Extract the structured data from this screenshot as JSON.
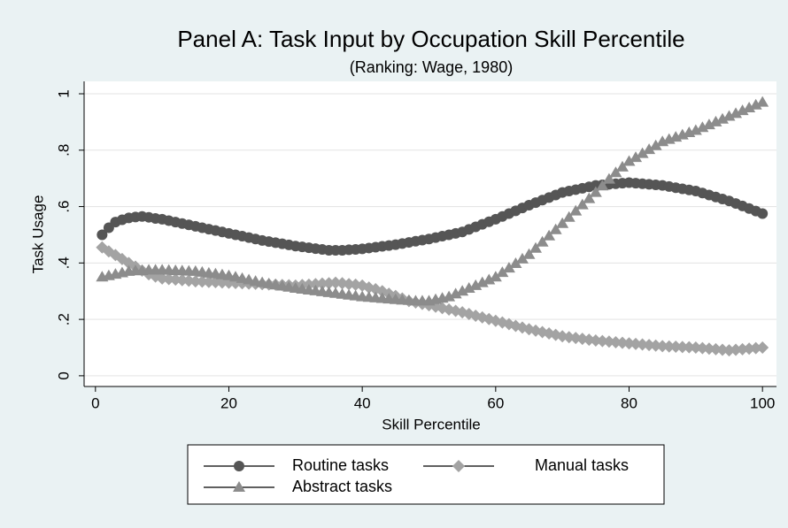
{
  "chart_data": {
    "type": "line",
    "title": "Panel A: Task Input by Occupation Skill Percentile",
    "subtitle": "(Ranking: Wage, 1980)",
    "x_label": "Skill Percentile",
    "y_label": "Task Usage",
    "x": [
      1,
      2,
      3,
      4,
      5,
      6,
      7,
      8,
      9,
      10,
      11,
      12,
      13,
      14,
      15,
      16,
      17,
      18,
      19,
      20,
      21,
      22,
      23,
      24,
      25,
      26,
      27,
      28,
      29,
      30,
      31,
      32,
      33,
      34,
      35,
      36,
      37,
      38,
      39,
      40,
      41,
      42,
      43,
      44,
      45,
      46,
      47,
      48,
      49,
      50,
      51,
      52,
      53,
      54,
      55,
      56,
      57,
      58,
      59,
      60,
      61,
      62,
      63,
      64,
      65,
      66,
      67,
      68,
      69,
      70,
      71,
      72,
      73,
      74,
      75,
      76,
      77,
      78,
      79,
      80,
      81,
      82,
      83,
      84,
      85,
      86,
      87,
      88,
      89,
      90,
      91,
      92,
      93,
      94,
      95,
      96,
      97,
      98,
      99,
      100
    ],
    "series": [
      {
        "name": "Routine tasks",
        "color": "#555555",
        "marker": "circle",
        "values": [
          0.5,
          0.525,
          0.545,
          0.553,
          0.56,
          0.563,
          0.565,
          0.562,
          0.558,
          0.555,
          0.55,
          0.545,
          0.54,
          0.535,
          0.53,
          0.525,
          0.52,
          0.515,
          0.51,
          0.505,
          0.5,
          0.495,
          0.49,
          0.485,
          0.48,
          0.476,
          0.472,
          0.468,
          0.464,
          0.46,
          0.457,
          0.454,
          0.451,
          0.448,
          0.445,
          0.445,
          0.445,
          0.447,
          0.448,
          0.45,
          0.453,
          0.456,
          0.459,
          0.462,
          0.465,
          0.469,
          0.473,
          0.477,
          0.481,
          0.485,
          0.49,
          0.495,
          0.5,
          0.505,
          0.51,
          0.519,
          0.528,
          0.537,
          0.546,
          0.555,
          0.565,
          0.575,
          0.585,
          0.595,
          0.605,
          0.614,
          0.623,
          0.632,
          0.641,
          0.65,
          0.655,
          0.66,
          0.665,
          0.67,
          0.675,
          0.677,
          0.679,
          0.681,
          0.683,
          0.685,
          0.683,
          0.681,
          0.679,
          0.677,
          0.675,
          0.671,
          0.667,
          0.663,
          0.659,
          0.655,
          0.648,
          0.641,
          0.634,
          0.627,
          0.62,
          0.611,
          0.602,
          0.593,
          0.584,
          0.575
        ]
      },
      {
        "name": "Manual tasks",
        "color": "#a3a3a3",
        "marker": "diamond",
        "values": [
          0.455,
          0.441,
          0.428,
          0.414,
          0.4,
          0.387,
          0.373,
          0.36,
          0.352,
          0.345,
          0.343,
          0.341,
          0.339,
          0.337,
          0.335,
          0.334,
          0.333,
          0.332,
          0.331,
          0.33,
          0.329,
          0.328,
          0.327,
          0.326,
          0.325,
          0.324,
          0.323,
          0.322,
          0.321,
          0.32,
          0.322,
          0.323,
          0.325,
          0.327,
          0.328,
          0.33,
          0.328,
          0.325,
          0.323,
          0.32,
          0.313,
          0.307,
          0.3,
          0.291,
          0.283,
          0.274,
          0.265,
          0.26,
          0.255,
          0.25,
          0.245,
          0.24,
          0.235,
          0.23,
          0.225,
          0.219,
          0.213,
          0.207,
          0.201,
          0.195,
          0.189,
          0.183,
          0.177,
          0.171,
          0.165,
          0.16,
          0.155,
          0.15,
          0.145,
          0.14,
          0.137,
          0.134,
          0.131,
          0.128,
          0.125,
          0.123,
          0.121,
          0.119,
          0.117,
          0.115,
          0.113,
          0.111,
          0.109,
          0.107,
          0.105,
          0.104,
          0.103,
          0.102,
          0.101,
          0.1,
          0.098,
          0.096,
          0.094,
          0.092,
          0.09,
          0.092,
          0.094,
          0.096,
          0.098,
          0.1
        ]
      },
      {
        "name": "Abstract tasks",
        "color": "#8c8c8c",
        "marker": "triangle",
        "values": [
          0.35,
          0.355,
          0.36,
          0.365,
          0.37,
          0.372,
          0.373,
          0.375,
          0.375,
          0.375,
          0.374,
          0.373,
          0.372,
          0.371,
          0.37,
          0.367,
          0.364,
          0.361,
          0.358,
          0.355,
          0.35,
          0.345,
          0.34,
          0.335,
          0.33,
          0.326,
          0.322,
          0.318,
          0.314,
          0.31,
          0.307,
          0.304,
          0.301,
          0.298,
          0.295,
          0.292,
          0.289,
          0.286,
          0.283,
          0.28,
          0.278,
          0.276,
          0.274,
          0.272,
          0.27,
          0.268,
          0.267,
          0.265,
          0.265,
          0.265,
          0.27,
          0.275,
          0.28,
          0.29,
          0.3,
          0.31,
          0.32,
          0.33,
          0.34,
          0.35,
          0.366,
          0.382,
          0.398,
          0.414,
          0.43,
          0.452,
          0.474,
          0.496,
          0.518,
          0.54,
          0.562,
          0.584,
          0.606,
          0.628,
          0.65,
          0.673,
          0.697,
          0.72,
          0.74,
          0.76,
          0.774,
          0.788,
          0.802,
          0.816,
          0.83,
          0.838,
          0.846,
          0.854,
          0.862,
          0.87,
          0.88,
          0.89,
          0.9,
          0.91,
          0.92,
          0.93,
          0.94,
          0.95,
          0.96,
          0.97
        ]
      }
    ],
    "xlim": [
      -1.7,
      102.1
    ],
    "ylim": [
      -0.038,
      1.044
    ],
    "xticks": [
      0,
      20,
      40,
      60,
      80,
      100
    ],
    "yticks": [
      0,
      {
        "value": 0.2,
        "label": ".2"
      },
      {
        "value": 0.4,
        "label": ".4"
      },
      {
        "value": 0.6,
        "label": ".6"
      },
      {
        "value": 0.8,
        "label": ".8"
      },
      1
    ],
    "grid": true,
    "legend": "bottom"
  }
}
